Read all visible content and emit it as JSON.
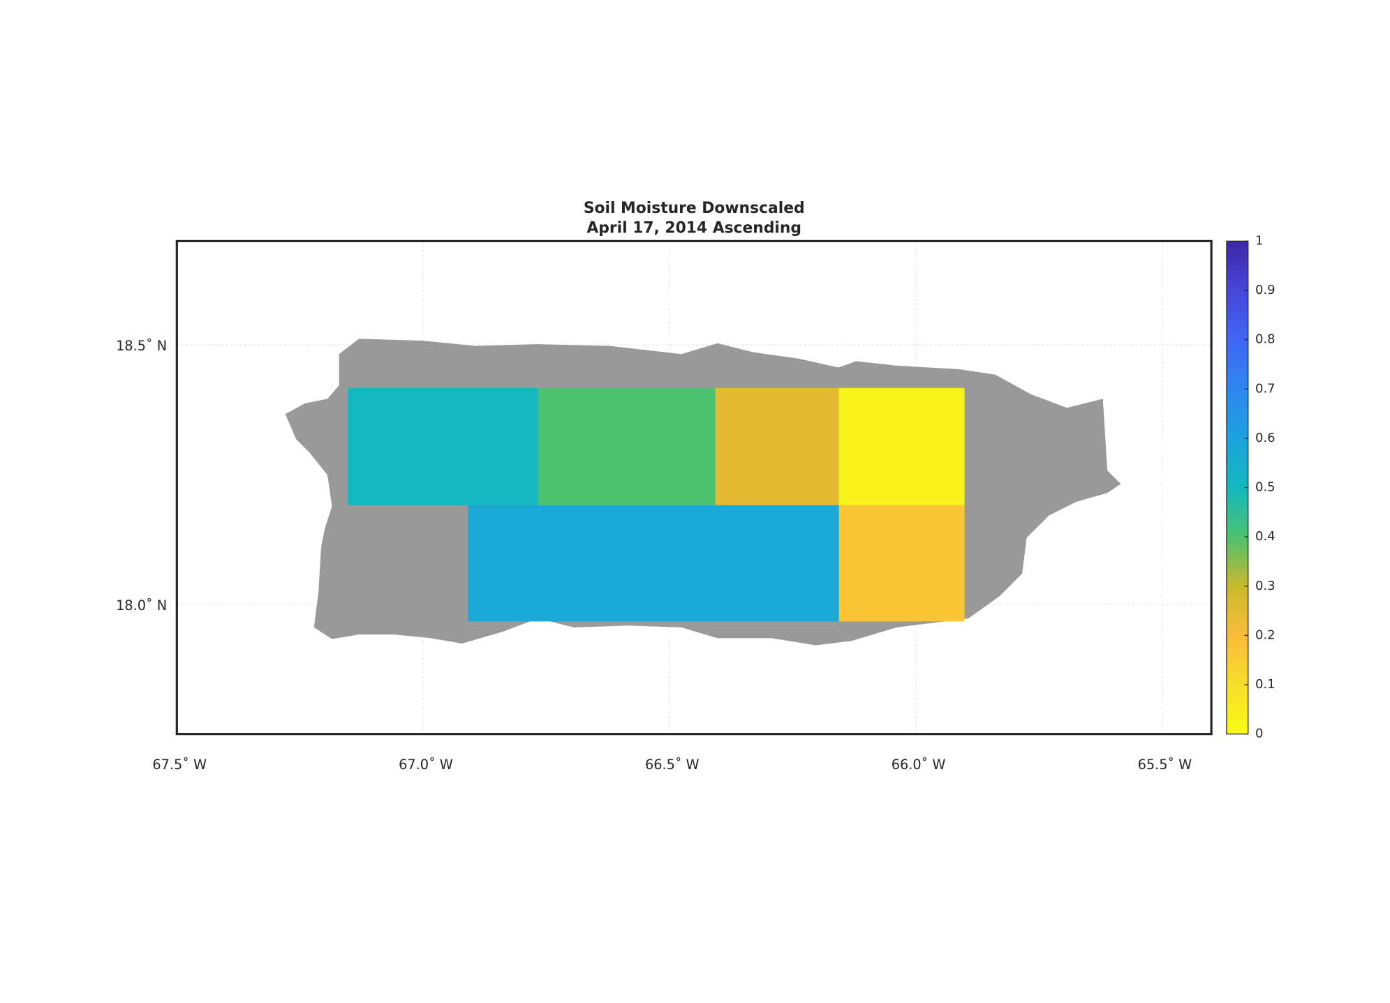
{
  "chart_data": {
    "type": "map",
    "title": "Soil Moisture Downscaled",
    "subtitle": "April 17, 2014 Ascending",
    "xlim": [
      -67.5,
      -65.4
    ],
    "ylim": [
      17.75,
      18.7
    ],
    "xticks": [
      {
        "value": -67.5,
        "label": "67.5˚ W"
      },
      {
        "value": -67.0,
        "label": "67.0˚ W"
      },
      {
        "value": -66.5,
        "label": "66.5˚ W"
      },
      {
        "value": -66.0,
        "label": "66.0˚ W"
      },
      {
        "value": -65.5,
        "label": "65.5˚ W"
      }
    ],
    "yticks": [
      {
        "value": 18.0,
        "label": "18.0˚ N"
      },
      {
        "value": 18.5,
        "label": "18.5˚ N"
      }
    ],
    "grid": true,
    "land_color": "#999999",
    "clim": [
      0,
      1
    ],
    "cticks": [
      0,
      0.1,
      0.2,
      0.3,
      0.4,
      0.5,
      0.6,
      0.7,
      0.8,
      0.9,
      1
    ],
    "colormap": [
      "#f9fb15",
      "#f6dd2a",
      "#fbbc3a",
      "#c8b92c",
      "#4cc16e",
      "#14b8c0",
      "#1ba3dd",
      "#2f86f0",
      "#3f66f5",
      "#4746da",
      "#3e27a8"
    ],
    "regions": [
      {
        "lon": [
          -67.153,
          -66.767
        ],
        "lat": [
          18.191,
          18.417
        ],
        "value": 0.5
      },
      {
        "lon": [
          -66.767,
          -66.407
        ],
        "lat": [
          18.191,
          18.417
        ],
        "value": 0.4
      },
      {
        "lon": [
          -66.407,
          -66.156
        ],
        "lat": [
          18.191,
          18.417
        ],
        "value": 0.25
      },
      {
        "lon": [
          -66.156,
          -65.901
        ],
        "lat": [
          18.191,
          18.417
        ],
        "value": 0.03
      },
      {
        "lon": [
          -66.909,
          -66.156
        ],
        "lat": [
          17.967,
          18.191
        ],
        "value": 0.57
      },
      {
        "lon": [
          -66.156,
          -65.901
        ],
        "lat": [
          17.967,
          18.191
        ],
        "value": 0.17
      }
    ]
  }
}
